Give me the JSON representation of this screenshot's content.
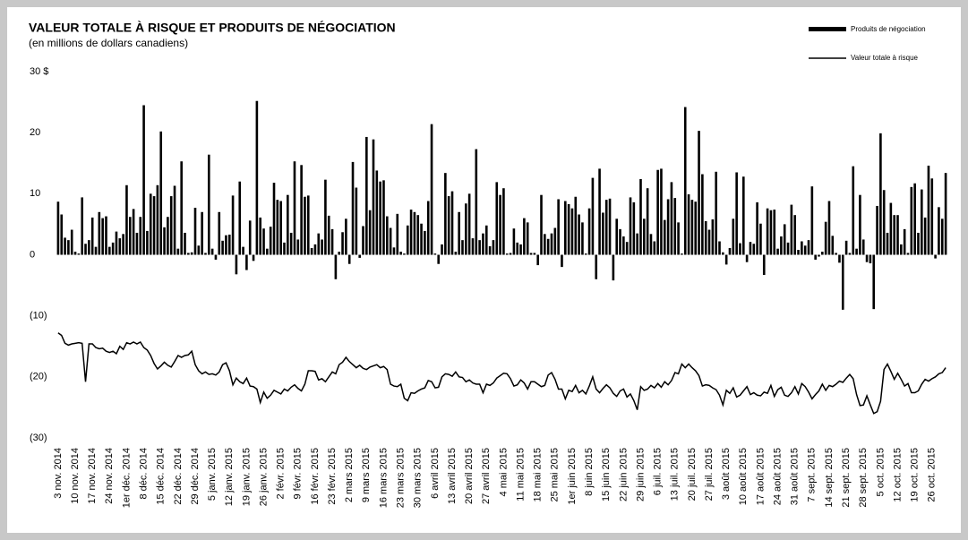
{
  "chart_data": {
    "type": "bar_line",
    "title": "VALEUR TOTALE À RISQUE ET PRODUITS DE NÉGOCIATION",
    "subtitle": "(en millions de dollars canadiens)",
    "categories": [
      "3 nov. 2014",
      null,
      null,
      null,
      null,
      "10 nov. 2014",
      null,
      null,
      null,
      null,
      "17 nov. 2014",
      null,
      null,
      null,
      null,
      "24 nov. 2014",
      null,
      null,
      null,
      null,
      "1er déc. 2014",
      null,
      null,
      null,
      null,
      "8 déc. 2014",
      null,
      null,
      null,
      null,
      "15 déc. 2014",
      null,
      null,
      null,
      null,
      "22 déc. 2014",
      null,
      null,
      null,
      null,
      "29 déc. 2014",
      null,
      null,
      null,
      null,
      "5 janv. 2015",
      null,
      null,
      null,
      null,
      "12 janv. 2015",
      null,
      null,
      null,
      null,
      "19 janv. 2015",
      null,
      null,
      null,
      null,
      "26 janv. 2015",
      null,
      null,
      null,
      null,
      "2 févr. 2015",
      null,
      null,
      null,
      null,
      "9 févr. 2015",
      null,
      null,
      null,
      null,
      "16 févr. 2015",
      null,
      null,
      null,
      null,
      "23 févr. 2015",
      null,
      null,
      null,
      null,
      "2 mars 2015",
      null,
      null,
      null,
      null,
      "9 mars 2015",
      null,
      null,
      null,
      null,
      "16 mars 2015",
      null,
      null,
      null,
      null,
      "23 mars 2015",
      null,
      null,
      null,
      null,
      "30 mars 2015",
      null,
      null,
      null,
      null,
      "6 avril 2015",
      null,
      null,
      null,
      null,
      "13 avril 2015",
      null,
      null,
      null,
      null,
      "20 avril 2015",
      null,
      null,
      null,
      null,
      "27 avril 2015",
      null,
      null,
      null,
      null,
      "4 mai 2015",
      null,
      null,
      null,
      null,
      "11 mai 2015",
      null,
      null,
      null,
      null,
      "18 mai 2015",
      null,
      null,
      null,
      null,
      "25 mai 2015",
      null,
      null,
      null,
      null,
      "1er juin 2015",
      null,
      null,
      null,
      null,
      "8 juin 2015",
      null,
      null,
      null,
      null,
      "15 juin 2015",
      null,
      null,
      null,
      null,
      "22 juin 2015",
      null,
      null,
      null,
      null,
      "29 juin 2015",
      null,
      null,
      null,
      null,
      "6 juil. 2015",
      null,
      null,
      null,
      null,
      "13 juil. 2015",
      null,
      null,
      null,
      null,
      "20 juil. 2015",
      null,
      null,
      null,
      null,
      "27 juil. 2015",
      null,
      null,
      null,
      null,
      "3 août 2015",
      null,
      null,
      null,
      null,
      "10 août 2015",
      null,
      null,
      null,
      null,
      "17 août 2015",
      null,
      null,
      null,
      null,
      "24 août 2015",
      null,
      null,
      null,
      null,
      "31 août 2015",
      null,
      null,
      null,
      null,
      "7 sept. 2015",
      null,
      null,
      null,
      null,
      "14 sept. 2015",
      null,
      null,
      null,
      null,
      "21 sept. 2015",
      null,
      null,
      null,
      null,
      "28 sept. 2015",
      null,
      null,
      null,
      null,
      "5 oct. 2015",
      null,
      null,
      null,
      null,
      "12 oct. 2015",
      null,
      null,
      null,
      null,
      "19 oct. 2015",
      null,
      null,
      null,
      null,
      "26 oct. 2015",
      null,
      null,
      null,
      null
    ],
    "series": [
      {
        "name": "Produits de négociation",
        "color": "#000000",
        "values": [
          8.7,
          6.6,
          2.8,
          2.4,
          4.1,
          0.5,
          0.2,
          9.4,
          1.8,
          2.4,
          6.1,
          1.3,
          7,
          6,
          6.3,
          1.3,
          2,
          3.8,
          2.7,
          3.4,
          11.4,
          6.2,
          7.5,
          3.6,
          6.2,
          24.5,
          3.9,
          10,
          9.6,
          11.4,
          20.2,
          4.5,
          6.2,
          9.6,
          11.3,
          1,
          15.3,
          3.6,
          0.3,
          0.4,
          7.7,
          1.5,
          7,
          0.3,
          16.4,
          1,
          -0.8,
          7,
          2.3,
          3.2,
          3.3,
          9.7,
          -3.2,
          12,
          1.3,
          -2.5,
          5.6,
          -1,
          25.2,
          6.1,
          4.3,
          1,
          4.6,
          11.8,
          9,
          8.8,
          2,
          9.8,
          3.6,
          15.3,
          2.5,
          14.7,
          9.5,
          9.7,
          1.1,
          1.7,
          3.5,
          2.5,
          12.3,
          6.4,
          4.2,
          -4,
          0.5,
          3.7,
          5.9,
          -1.5,
          15.2,
          11,
          -0.5,
          4.7,
          19.3,
          7.3,
          18.9,
          13.8,
          12,
          12.2,
          6.3,
          4.4,
          1.2,
          6.7,
          0.5,
          0.2,
          4.8,
          7.4,
          7,
          6.5,
          5.1,
          3.9,
          8.8,
          21.4,
          0.2,
          -1.5,
          1.7,
          13.4,
          9.6,
          10.4,
          0.5,
          7,
          2.4,
          8.4,
          10,
          2.7,
          17.3,
          2.4,
          3.5,
          4.8,
          1.4,
          2.4,
          11.9,
          9.8,
          10.9,
          0.2,
          0.3,
          4.3,
          2,
          1.7,
          6,
          5.3,
          0.3,
          0.3,
          -1.7,
          9.8,
          3.4,
          2.6,
          3.5,
          4.4,
          9.1,
          -2,
          8.8,
          8.3,
          7.6,
          9.5,
          6.6,
          5.3,
          0.2,
          7.6,
          12.6,
          -4,
          14.1,
          6.9,
          9,
          9.2,
          -4.2,
          5.9,
          4.2,
          3,
          2.1,
          9.4,
          8.6,
          3.5,
          12.4,
          5.9,
          10.9,
          3.4,
          2.2,
          13.9,
          14.1,
          5.7,
          9.1,
          11.9,
          9.3,
          5.3,
          0.2,
          24.2,
          9.9,
          9,
          8.7,
          20.3,
          13.2,
          5.5,
          4.1,
          5.8,
          13.6,
          2.2,
          0.4,
          -1.6,
          1.1,
          5.9,
          13.5,
          1.9,
          12.8,
          -1.2,
          2.1,
          1.8,
          8.6,
          5.1,
          -3.3,
          7.6,
          7.3,
          7.4,
          1,
          3,
          5,
          2,
          8.2,
          6.5,
          0.8,
          2.2,
          1.5,
          2.4,
          11.2,
          -0.8,
          -0.3,
          0.5,
          5.4,
          8.8,
          3.1,
          0.3,
          -1.3,
          -9,
          2.3,
          0.3,
          14.5,
          1,
          9.8,
          2.5,
          -1.2,
          -1.4,
          -8.9,
          8,
          19.9,
          10.6,
          3.6,
          8.5,
          6.5,
          6.5,
          1.7,
          4.2,
          0.3,
          11.1,
          11.7,
          3.6,
          10.7,
          6.1,
          14.6,
          12.5,
          -0.6,
          7.8,
          5.9,
          13.4
        ]
      },
      {
        "name": "Valeur totale à risque",
        "color": "#000000",
        "values": [
          -12.8,
          -13.2,
          -14.5,
          -14.8,
          -14.6,
          -14.5,
          -14.4,
          -14.5,
          -20.8,
          -14.6,
          -14.6,
          -15.2,
          -15.4,
          -15.3,
          -15.8,
          -16,
          -15.8,
          -16.2,
          -15,
          -15.5,
          -14.4,
          -14.6,
          -14.3,
          -14.6,
          -14.3,
          -15.2,
          -15.6,
          -16.5,
          -17.8,
          -18.7,
          -18.2,
          -17.6,
          -18.1,
          -18.4,
          -17.5,
          -16.5,
          -16.8,
          -16.5,
          -16.4,
          -15.8,
          -18,
          -19,
          -19.5,
          -19.2,
          -19.6,
          -19.5,
          -19.7,
          -19.2,
          -18,
          -17.7,
          -19,
          -21.3,
          -20.2,
          -20.8,
          -21.1,
          -20.2,
          -21.5,
          -21.6,
          -22,
          -24.2,
          -22.5,
          -23.5,
          -23,
          -22.2,
          -22.5,
          -22.8,
          -22,
          -22.3,
          -21.7,
          -21.3,
          -21.9,
          -22.3,
          -21.2,
          -19,
          -19,
          -19.1,
          -20.5,
          -20.3,
          -20.8,
          -20,
          -19.2,
          -19.5,
          -18,
          -17.6,
          -16.8,
          -17.5,
          -18,
          -18.5,
          -18.1,
          -18.6,
          -18.8,
          -18.4,
          -18.2,
          -18,
          -18.5,
          -18.3,
          -18.8,
          -21.2,
          -21.5,
          -21.6,
          -21.2,
          -23.5,
          -23.9,
          -22.6,
          -22.7,
          -22.3,
          -22,
          -21.8,
          -20.6,
          -20.8,
          -21.8,
          -21.7,
          -20,
          -19.5,
          -19.6,
          -19.9,
          -19.2,
          -20,
          -20.1,
          -20.8,
          -20.5,
          -21,
          -21.2,
          -21.2,
          -22.6,
          -21.2,
          -21.4,
          -21,
          -20.2,
          -19.8,
          -19.4,
          -19.5,
          -20.3,
          -21.5,
          -21.3,
          -20.5,
          -21,
          -22,
          -20.8,
          -20.8,
          -21.2,
          -21.6,
          -21.4,
          -19.7,
          -19.3,
          -20.4,
          -22,
          -22,
          -23.6,
          -22.2,
          -22.4,
          -21.4,
          -22.6,
          -22.2,
          -22.8,
          -21.5,
          -20,
          -22,
          -22.6,
          -21.9,
          -21.3,
          -21.8,
          -22.7,
          -23.2,
          -22.3,
          -22,
          -23.3,
          -22.8,
          -23.9,
          -25.4,
          -21.6,
          -22.2,
          -22,
          -21.4,
          -21.8,
          -21.1,
          -21.7,
          -20.8,
          -21.3,
          -20.6,
          -19.3,
          -19.5,
          -17.9,
          -18.5,
          -17.9,
          -18.5,
          -19,
          -19.8,
          -21.5,
          -21.3,
          -21.4,
          -21.8,
          -22.1,
          -23,
          -24.6,
          -22.2,
          -22.7,
          -21.8,
          -23.3,
          -23,
          -22.3,
          -21.6,
          -22.9,
          -22.6,
          -23,
          -23.1,
          -22.5,
          -22.7,
          -21.4,
          -23.2,
          -22.1,
          -21.7,
          -23,
          -23.2,
          -22.6,
          -21.6,
          -22.8,
          -21.1,
          -21.6,
          -22.5,
          -23.6,
          -22.9,
          -22.3,
          -21.2,
          -22.2,
          -21.4,
          -21.6,
          -21.2,
          -20.7,
          -20.9,
          -20.2,
          -19.6,
          -20.3,
          -22.9,
          -24.7,
          -24.6,
          -23.1,
          -24.6,
          -26,
          -25.7,
          -24,
          -18.8,
          -17.9,
          -19.1,
          -20.4,
          -19.4,
          -20.4,
          -21.5,
          -21.1,
          -22.6,
          -22.6,
          -22.3,
          -21.2,
          -20.4,
          -20.7,
          -20.3,
          -20,
          -19.5,
          -19.3,
          -18.5
        ]
      }
    ],
    "ylim": [
      -30,
      30
    ],
    "yticks": [
      {
        "value": -30,
        "label": "(30)"
      },
      {
        "value": -20,
        "label": "(20)"
      },
      {
        "value": -10,
        "label": "(10)"
      },
      0,
      10,
      20,
      {
        "value": 30,
        "label": "30 $"
      }
    ],
    "grid": false,
    "legend": "top-right"
  }
}
